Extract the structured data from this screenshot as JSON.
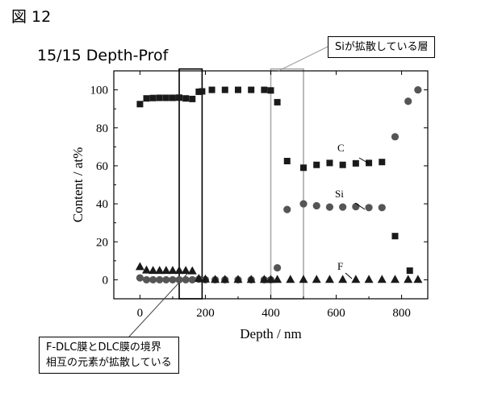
{
  "figure_label": "図 12",
  "subtitle": "15/15 Depth-Prof",
  "callouts": {
    "si_diffusion": "Siが拡散している層",
    "dlc_boundary_line1": "F-DLC膜とDLC膜の境界",
    "dlc_boundary_line2": "相互の元素が拡散している"
  },
  "chart_data": {
    "type": "scatter",
    "xlabel": "Depth / nm",
    "ylabel": "Content / at%",
    "xlim": [
      -80,
      880
    ],
    "ylim": [
      -10,
      110
    ],
    "x_ticks": [
      0,
      200,
      400,
      600,
      800
    ],
    "y_ticks": [
      0,
      20,
      40,
      60,
      80,
      100
    ],
    "grid": false,
    "series": [
      {
        "name": "C",
        "marker": "square",
        "points": [
          [
            0,
            92.5
          ],
          [
            20,
            95.5
          ],
          [
            40,
            95.7
          ],
          [
            60,
            95.8
          ],
          [
            80,
            95.8
          ],
          [
            100,
            95.8
          ],
          [
            120,
            95.9
          ],
          [
            140,
            95.5
          ],
          [
            160,
            95.2
          ],
          [
            180,
            99.0
          ],
          [
            190,
            99.2
          ],
          [
            220,
            100
          ],
          [
            260,
            100
          ],
          [
            300,
            100
          ],
          [
            340,
            100
          ],
          [
            380,
            100
          ],
          [
            400,
            99.7
          ],
          [
            420,
            93.5
          ],
          [
            450,
            62.5
          ],
          [
            500,
            59.0
          ],
          [
            540,
            60.5
          ],
          [
            580,
            61.5
          ],
          [
            620,
            60.5
          ],
          [
            660,
            61.3
          ],
          [
            700,
            61.5
          ],
          [
            740,
            62.0
          ],
          [
            780,
            23.0
          ],
          [
            825,
            4.8
          ]
        ]
      },
      {
        "name": "Si",
        "marker": "circle",
        "points": [
          [
            0,
            1.0
          ],
          [
            20,
            0
          ],
          [
            40,
            0
          ],
          [
            60,
            0
          ],
          [
            80,
            0
          ],
          [
            100,
            0
          ],
          [
            120,
            0
          ],
          [
            140,
            0
          ],
          [
            160,
            0
          ],
          [
            180,
            0.3
          ],
          [
            200,
            0
          ],
          [
            230,
            0
          ],
          [
            260,
            0
          ],
          [
            300,
            0
          ],
          [
            340,
            0
          ],
          [
            380,
            0
          ],
          [
            400,
            0
          ],
          [
            420,
            6.3
          ],
          [
            450,
            37.0
          ],
          [
            500,
            40.0
          ],
          [
            540,
            39.0
          ],
          [
            580,
            38.3
          ],
          [
            620,
            38.3
          ],
          [
            660,
            38.5
          ],
          [
            700,
            38.0
          ],
          [
            740,
            38.0
          ],
          [
            780,
            75.3
          ],
          [
            820,
            94.0
          ],
          [
            850,
            100
          ]
        ]
      },
      {
        "name": "F",
        "marker": "triangle",
        "points": [
          [
            0,
            7.0
          ],
          [
            20,
            5.2
          ],
          [
            40,
            5.0
          ],
          [
            60,
            5.0
          ],
          [
            80,
            5.0
          ],
          [
            100,
            5.0
          ],
          [
            120,
            5.0
          ],
          [
            140,
            5.0
          ],
          [
            160,
            4.8
          ],
          [
            180,
            0.8
          ],
          [
            200,
            0.5
          ],
          [
            230,
            0.3
          ],
          [
            260,
            0.3
          ],
          [
            300,
            0.3
          ],
          [
            340,
            0.3
          ],
          [
            380,
            0.3
          ],
          [
            400,
            0.3
          ],
          [
            420,
            0.3
          ],
          [
            460,
            0.3
          ],
          [
            500,
            0.3
          ],
          [
            540,
            0.3
          ],
          [
            580,
            0.3
          ],
          [
            620,
            0.3
          ],
          [
            660,
            0.3
          ],
          [
            700,
            0.3
          ],
          [
            740,
            0.3
          ],
          [
            780,
            0.3
          ],
          [
            820,
            0.3
          ],
          [
            850,
            0.3
          ]
        ]
      }
    ],
    "series_labels": [
      "C",
      "Si",
      "F"
    ],
    "highlight_boxes": [
      {
        "x_range": [
          120,
          190
        ],
        "y_range": [
          -10,
          111
        ],
        "color": "#000000"
      },
      {
        "x_range": [
          400,
          500
        ],
        "y_range": [
          -10,
          111
        ],
        "color": "#aaaaaa"
      }
    ],
    "marker_color": "#1a1a1a",
    "circle_color": "#555555"
  }
}
